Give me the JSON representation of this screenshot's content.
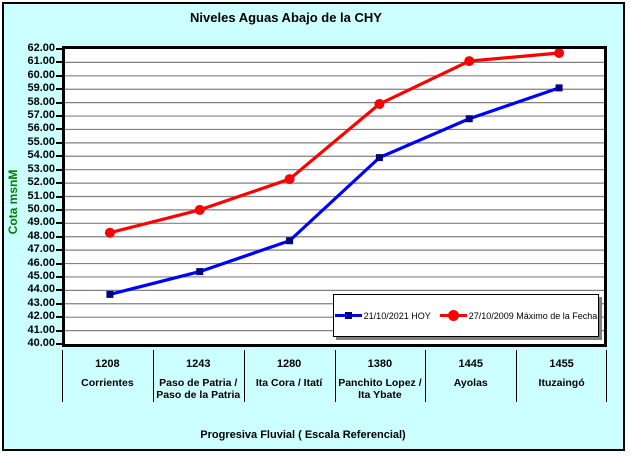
{
  "window": {
    "background_color": "#CCFFFF"
  },
  "chart_data": {
    "type": "line",
    "title": "Niveles Aguas Abajo de la CHY",
    "ylabel": "Cota msnM",
    "xlabel": "Progresiva Fluvial ( Escala Referencial)",
    "ylim": [
      40,
      62
    ],
    "ytick_step": 1,
    "ytick_decimals": 2,
    "grid": true,
    "legend_position": "inside-bottom-right",
    "categories": [
      "1208",
      "1243",
      "1280",
      "1380",
      "1445",
      "1455"
    ],
    "category_names": [
      [
        "Corrientes"
      ],
      [
        "Paso de Patria /",
        "Paso de la Patria"
      ],
      [
        "Ita Cora / Itatí"
      ],
      [
        "Panchito Lopez /",
        "Ita Ybate"
      ],
      [
        "Ayolas"
      ],
      [
        "Ituzaingó"
      ]
    ],
    "series": [
      {
        "name": "21/10/2021 HOY",
        "color": "#0000FF",
        "marker": "square",
        "marker_color": "#000080",
        "values": [
          43.7,
          45.4,
          47.7,
          53.9,
          56.8,
          59.1
        ]
      },
      {
        "name": "27/10/2009 Máximo de la Fecha",
        "color": "#FF0000",
        "marker": "circle",
        "marker_color": "#FF0000",
        "values": [
          48.3,
          50.0,
          52.3,
          57.9,
          61.1,
          61.7
        ]
      }
    ],
    "colors": {
      "plot_background": "#FFFFFF",
      "grid_color": "#808080",
      "axis_color": "#000000",
      "title_color": "#000000",
      "ylabel_color": "#008000",
      "tick_label_color": "#000000",
      "legend_shadow": "#808080"
    }
  }
}
